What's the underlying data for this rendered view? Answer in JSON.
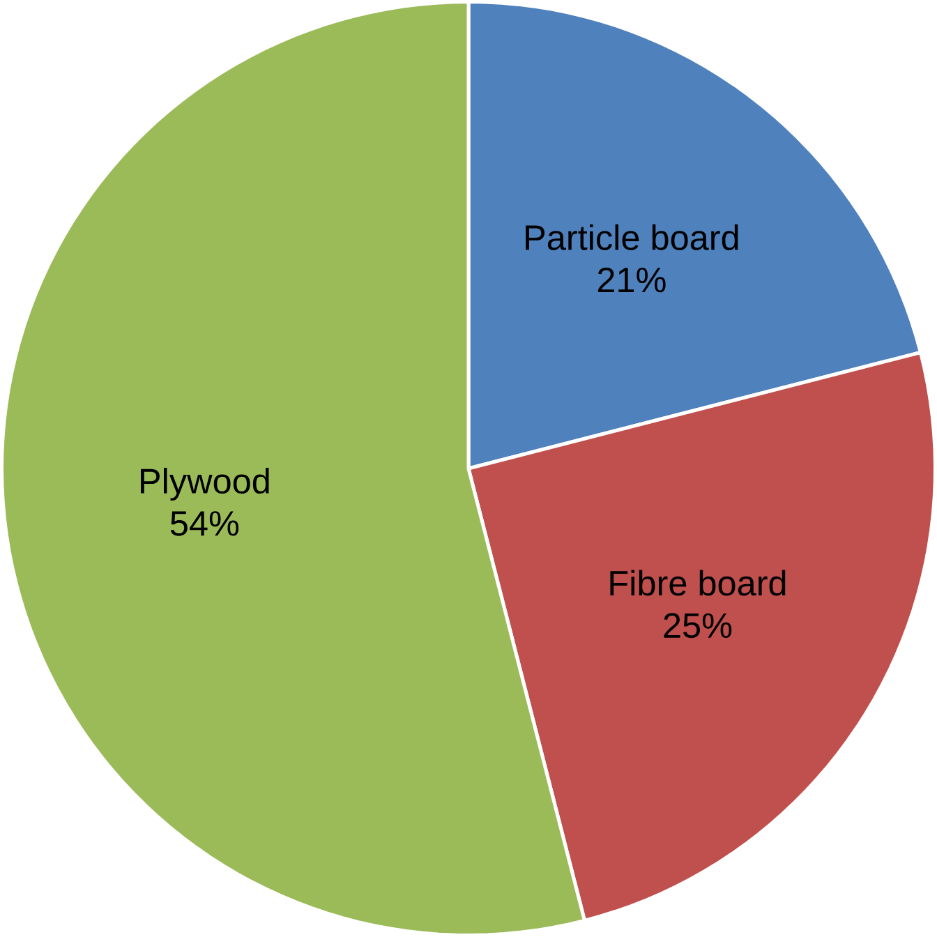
{
  "chart_data": {
    "type": "pie",
    "categories": [
      "Particle board",
      "Fibre board",
      "Plywood"
    ],
    "values": [
      21,
      25,
      54
    ],
    "colors": [
      "#4f81bd",
      "#c0504d",
      "#9bbb59"
    ],
    "value_labels": [
      "21%",
      "25%",
      "54%"
    ]
  }
}
